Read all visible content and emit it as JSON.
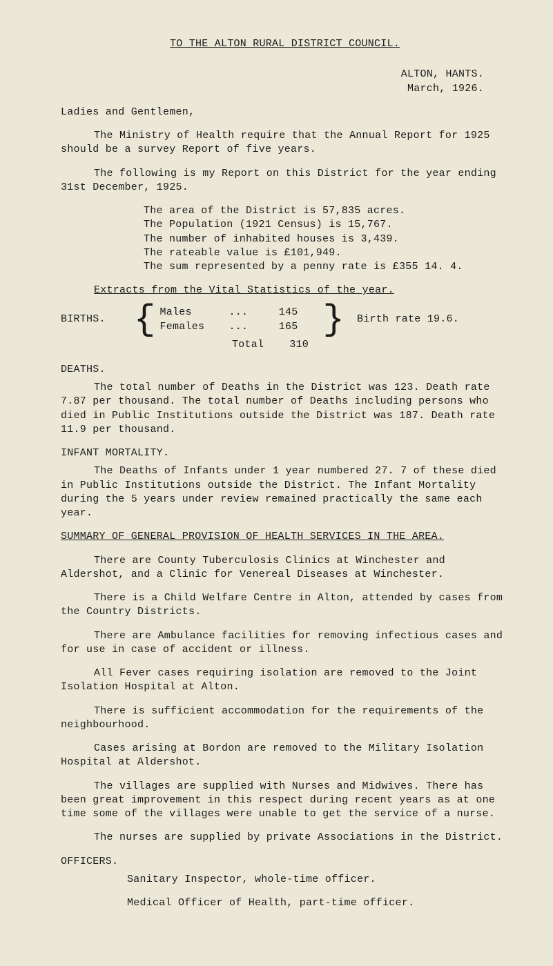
{
  "title": "TO THE ALTON RURAL DISTRICT COUNCIL.",
  "location": "ALTON, HANTS.",
  "date": "March, 1926.",
  "salutation": "Ladies and Gentlemen,",
  "p1": "The Ministry of Health require that the Annual Report for 1925 should be a survey Report of five years.",
  "p2": "The following is my Report on this District for the year ending 31st December, 1925.",
  "facts": {
    "area": "The area of the District is 57,835 acres.",
    "population": "The Population (1921 Census) is 15,767.",
    "houses": "The number of inhabited houses is 3,439.",
    "rateable": "The rateable value is £101,949.",
    "pennyrate": "The sum represented by a penny rate is £355 14. 4."
  },
  "extracts_hd": "Extracts from the Vital Statistics of the year.",
  "births": {
    "label": "BIRTHS.",
    "males_label": "Males",
    "males_val": "145",
    "females_label": "Females",
    "females_val": "165",
    "dots": "...",
    "total_label": "Total",
    "total_val": "310",
    "rate": "Birth rate 19.6."
  },
  "deaths": {
    "heading": "DEATHS.",
    "p1": "The total number of Deaths in the District was 123. Death rate 7.87 per thousand.  The total number of Deaths including persons who died in Public Institutions outside the District was 187.  Death rate 11.9 per thousand."
  },
  "infant": {
    "heading": "INFANT MORTALITY.",
    "p1": "The Deaths of Infants under 1 year numbered 27.  7 of these died in Public Institutions outside the District. The Infant Mortality during the 5 years under review remained practically the same each year."
  },
  "summary_hd": "SUMMARY OF GENERAL PROVISION OF HEALTH SERVICES IN THE AREA.",
  "sp1": "There are County Tuberculosis Clinics at Winchester and Aldershot, and a Clinic for Venereal Diseases at Winchester.",
  "sp2": "There is a Child Welfare Centre in Alton, attended by cases from the Country Districts.",
  "sp3": "There are Ambulance facilities for removing infectious cases and for use in case of accident or illness.",
  "sp4": "All Fever cases requiring isolation are removed to the Joint Isolation Hospital at Alton.",
  "sp5": "There is sufficient accommodation for the requirements of the neighbourhood.",
  "sp6": "Cases arising at Bordon are removed to the Military Isolation Hospital at Aldershot.",
  "sp7": "The villages are supplied with Nurses and Midwives. There has been great improvement in this respect during recent years as at one time some of the villages were unable to get the service of a nurse.",
  "sp8": "The nurses are supplied by private Associations in the District.",
  "officers_hd": "OFFICERS.",
  "officers_l1": "Sanitary Inspector, whole-time officer.",
  "officers_l2": "Medical Officer of Health, part-time officer."
}
